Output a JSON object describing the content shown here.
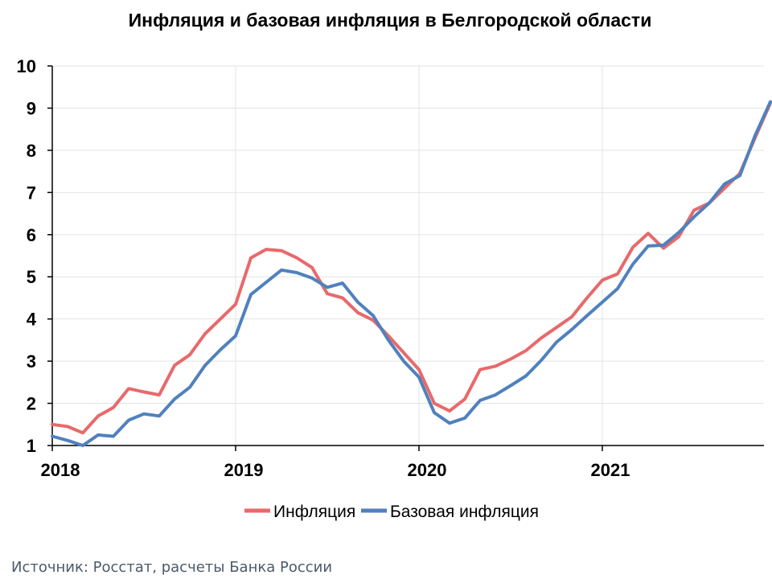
{
  "chart_data": {
    "type": "line",
    "title": "Инфляция и базовая инфляция в Белгородской области",
    "xlabel": "",
    "ylabel": "",
    "x_ticks": [
      "2018",
      "2019",
      "2020",
      "2021"
    ],
    "y_ticks": [
      "1",
      "2",
      "3",
      "4",
      "5",
      "6",
      "7",
      "8",
      "9",
      "10"
    ],
    "ylim": [
      1,
      10
    ],
    "x_start": "2018-01",
    "grid": true,
    "legend_position": "bottom",
    "series": [
      {
        "name": "Инфляция",
        "color": "#e8696b",
        "values": [
          1.5,
          1.45,
          1.3,
          1.7,
          1.9,
          2.35,
          2.27,
          2.2,
          2.9,
          3.15,
          3.65,
          4.0,
          4.35,
          5.45,
          5.65,
          5.62,
          5.45,
          5.22,
          4.6,
          4.5,
          4.15,
          3.97,
          3.6,
          3.2,
          2.8,
          2.0,
          1.82,
          2.1,
          2.8,
          2.88,
          3.05,
          3.25,
          3.55,
          3.8,
          4.05,
          4.5,
          4.92,
          5.07,
          5.7,
          6.03,
          5.68,
          5.95,
          6.58,
          6.75,
          7.1,
          7.45,
          8.3,
          9.12
        ]
      },
      {
        "name": "Базовая инфляция",
        "color": "#4f81bd",
        "values": [
          1.22,
          1.12,
          1.0,
          1.25,
          1.22,
          1.6,
          1.75,
          1.7,
          2.1,
          2.38,
          2.9,
          3.27,
          3.6,
          4.58,
          4.87,
          5.16,
          5.1,
          4.97,
          4.75,
          4.85,
          4.4,
          4.08,
          3.5,
          3.0,
          2.62,
          1.78,
          1.53,
          1.65,
          2.07,
          2.2,
          2.42,
          2.65,
          3.02,
          3.45,
          3.75,
          4.08,
          4.4,
          4.72,
          5.3,
          5.73,
          5.75,
          6.05,
          6.42,
          6.75,
          7.2,
          7.4,
          8.35,
          9.15
        ]
      }
    ]
  },
  "source_text": "Источник: Росстат, расчеты  Банка  России"
}
